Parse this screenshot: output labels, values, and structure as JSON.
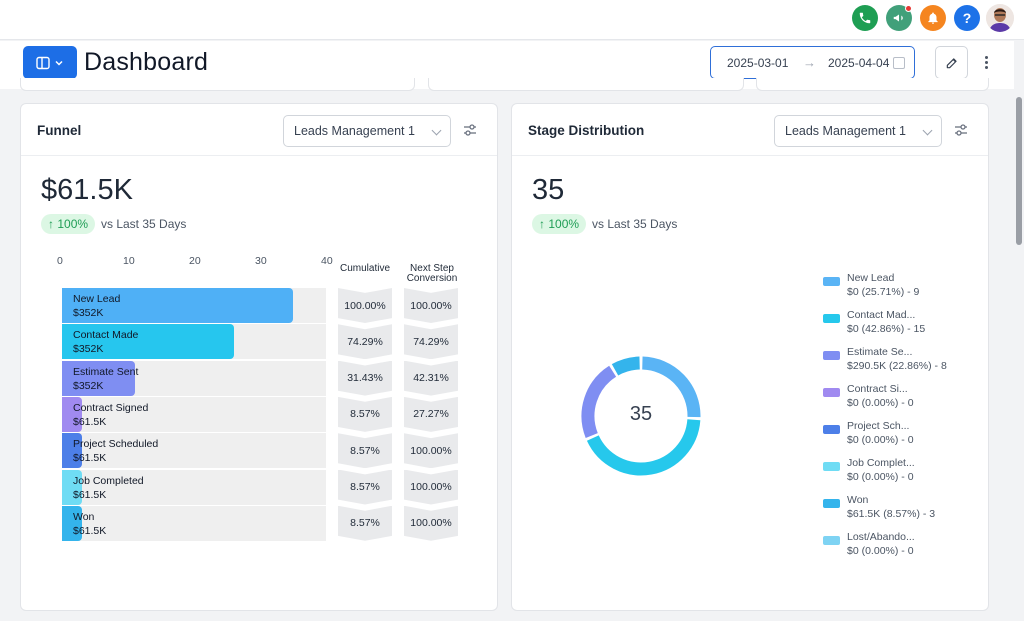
{
  "header": {
    "title": "Dashboard",
    "date_start": "2025-03-01",
    "date_end": "2025-04-04",
    "arrow": "→"
  },
  "topbar": {
    "icons": [
      "phone-icon",
      "megaphone-icon",
      "bell-icon",
      "help-icon",
      "avatar"
    ],
    "help_label": "?",
    "colors": {
      "phone": "#1e9e53",
      "megaphone": "#41a07a",
      "bell": "#f5851f",
      "help": "#1d72e8"
    }
  },
  "funnel": {
    "title": "Funnel",
    "selector": "Leads Management 1",
    "total": "$61.5K",
    "change": "100%",
    "change_arrow": "↑",
    "compare_text": "vs Last 35 Days",
    "col_cumulative": "Cumulative",
    "col_next": "Next Step Conversion",
    "stages": [
      {
        "name": "New Lead",
        "value": "$352K",
        "count": 35,
        "cumulative": "100.00%",
        "next": "100.00%",
        "color": "#4fb0f6"
      },
      {
        "name": "Contact Made",
        "value": "$352K",
        "count": 26,
        "cumulative": "74.29%",
        "next": "74.29%",
        "color": "#26c6ee"
      },
      {
        "name": "Estimate Sent",
        "value": "$352K",
        "count": 11,
        "cumulative": "31.43%",
        "next": "42.31%",
        "color": "#7f8ef2"
      },
      {
        "name": "Contract Signed",
        "value": "$61.5K",
        "count": 3,
        "cumulative": "8.57%",
        "next": "27.27%",
        "color": "#a08af0"
      },
      {
        "name": "Project Scheduled",
        "value": "$61.5K",
        "count": 3,
        "cumulative": "8.57%",
        "next": "100.00%",
        "color": "#4d7fe8"
      },
      {
        "name": "Job Completed",
        "value": "$61.5K",
        "count": 3,
        "cumulative": "8.57%",
        "next": "100.00%",
        "color": "#6fdcf4"
      },
      {
        "name": "Won",
        "value": "$61.5K",
        "count": 3,
        "cumulative": "8.57%",
        "next": "100.00%",
        "color": "#34b4ec"
      }
    ]
  },
  "chart_data": {
    "type": "bar",
    "orientation": "horizontal",
    "categories": [
      "New Lead",
      "Contact Made",
      "Estimate Sent",
      "Contract Signed",
      "Project Scheduled",
      "Job Completed",
      "Won"
    ],
    "values": [
      35,
      26,
      11,
      3,
      3,
      3,
      3
    ],
    "xlim": [
      0,
      40
    ],
    "xticks": [
      0,
      10,
      20,
      30,
      40
    ]
  },
  "distribution": {
    "title": "Stage Distribution",
    "selector": "Leads Management 1",
    "total": "35",
    "change": "100%",
    "change_arrow": "↑",
    "compare_text": "vs Last 35 Days",
    "center_label": "35",
    "legend": [
      {
        "line1": "New Lead",
        "line2": "$0 (25.71%) - 9",
        "count": 9,
        "color": "#5ab4f5"
      },
      {
        "line1": "Contact Mad...",
        "line2": "$0 (42.86%) - 15",
        "count": 15,
        "color": "#26c8ec"
      },
      {
        "line1": "Estimate Se...",
        "line2": "$290.5K (22.86%) - 8",
        "count": 8,
        "color": "#7f8ef2"
      },
      {
        "line1": "Contract Si...",
        "line2": "$0 (0.00%) - 0",
        "count": 0,
        "color": "#a08af0"
      },
      {
        "line1": "Project Sch...",
        "line2": "$0 (0.00%) - 0",
        "count": 0,
        "color": "#4d7fe8"
      },
      {
        "line1": "Job Complet...",
        "line2": "$0 (0.00%) - 0",
        "count": 0,
        "color": "#6fdcf4"
      },
      {
        "line1": "Won",
        "line2": "$61.5K (8.57%) - 3",
        "count": 3,
        "color": "#34b4ec"
      },
      {
        "line1": "Lost/Abando...",
        "line2": "$0 (0.00%) - 0",
        "count": 0,
        "color": "#7ed3f3"
      }
    ]
  }
}
